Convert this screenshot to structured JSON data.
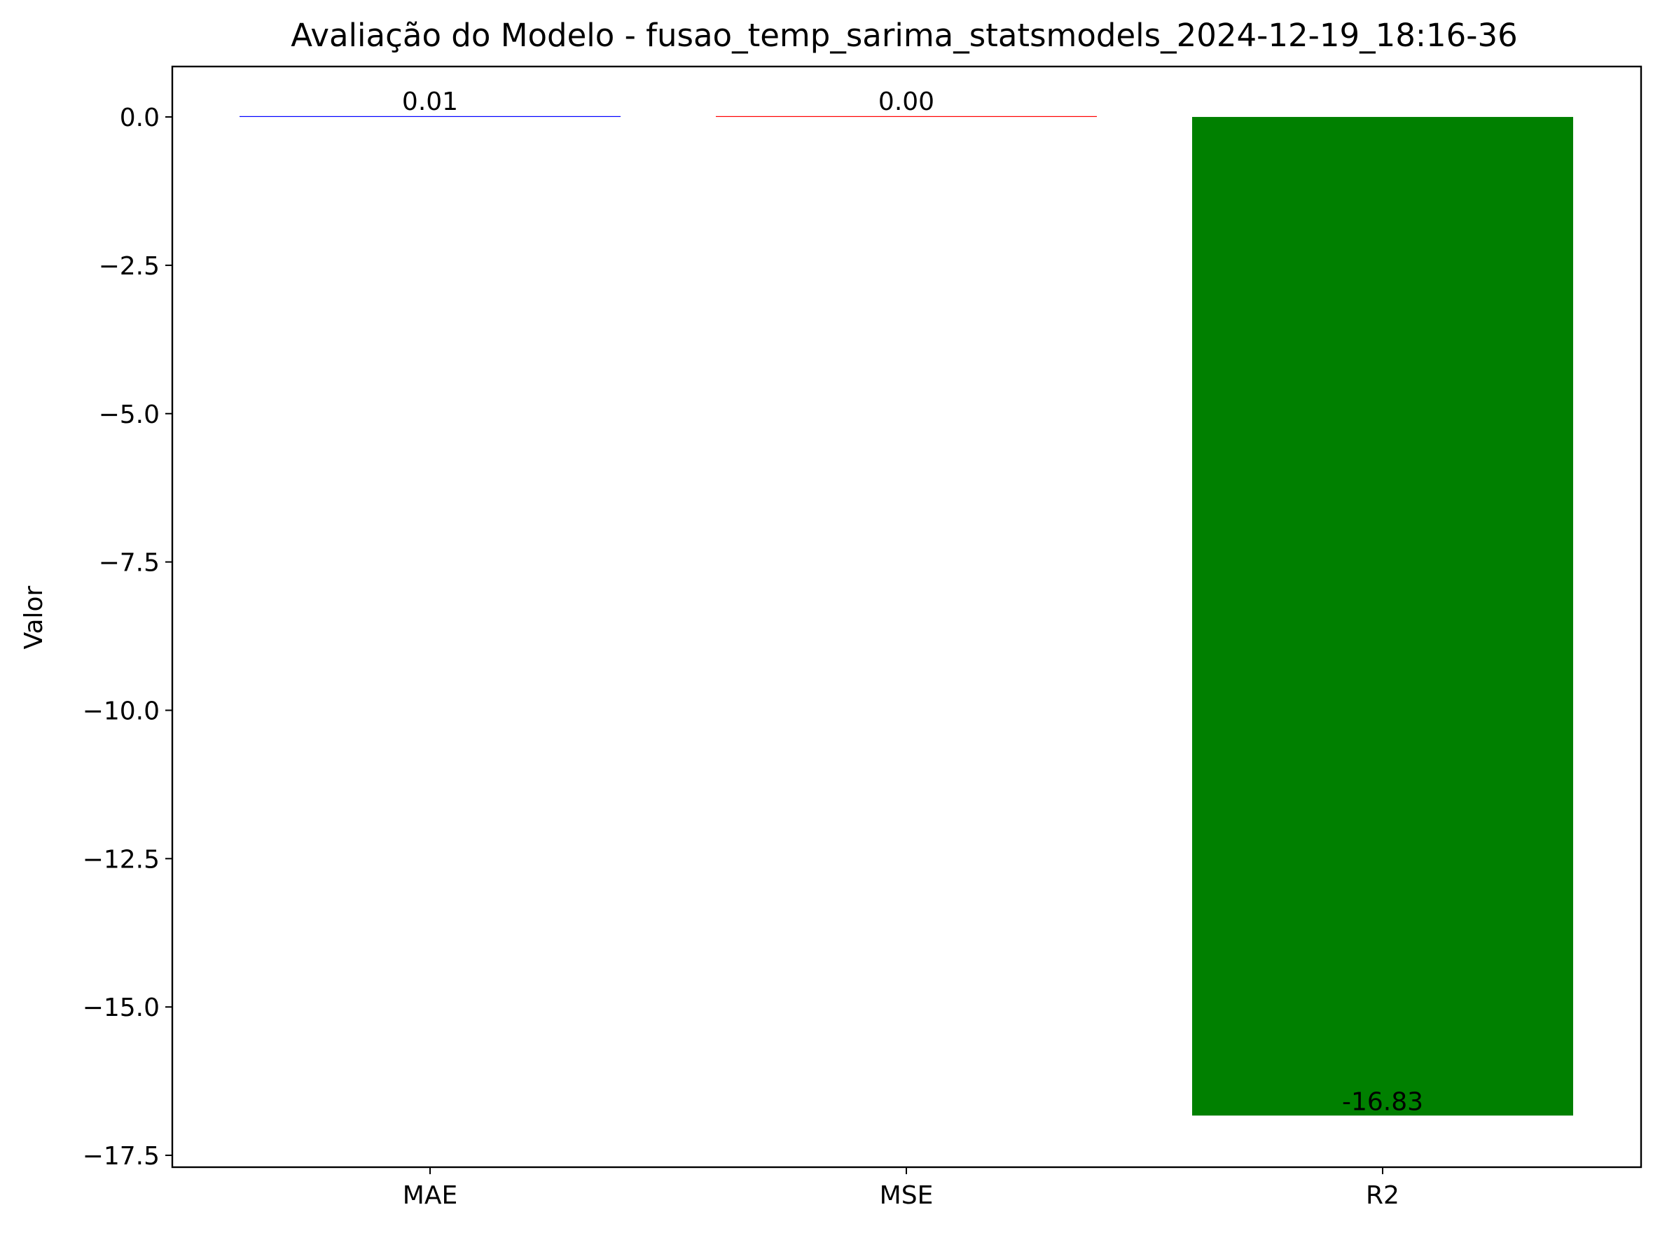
{
  "chart_data": {
    "type": "bar",
    "title": "Avaliação do Modelo - fusao_temp_sarima_statsmodels_2024-12-19_18:16-36",
    "xlabel": "",
    "ylabel": "Valor",
    "categories": [
      "MAE",
      "MSE",
      "R2"
    ],
    "values": [
      0.01,
      0.001,
      -16.83
    ],
    "value_labels": [
      "0.01",
      "0.00",
      "-16.83"
    ],
    "colors": [
      "#0000ff",
      "#ff0000",
      "#008000"
    ],
    "ylim": [
      -17.7,
      0.85
    ],
    "yticks": [
      0.0,
      -2.5,
      -5.0,
      -7.5,
      -10.0,
      -12.5,
      -15.0,
      -17.5
    ],
    "ytick_labels": [
      "0.0",
      "−2.5",
      "−5.0",
      "−7.5",
      "−10.0",
      "−12.5",
      "−15.0",
      "−17.5"
    ],
    "grid": false,
    "legend": "none"
  }
}
